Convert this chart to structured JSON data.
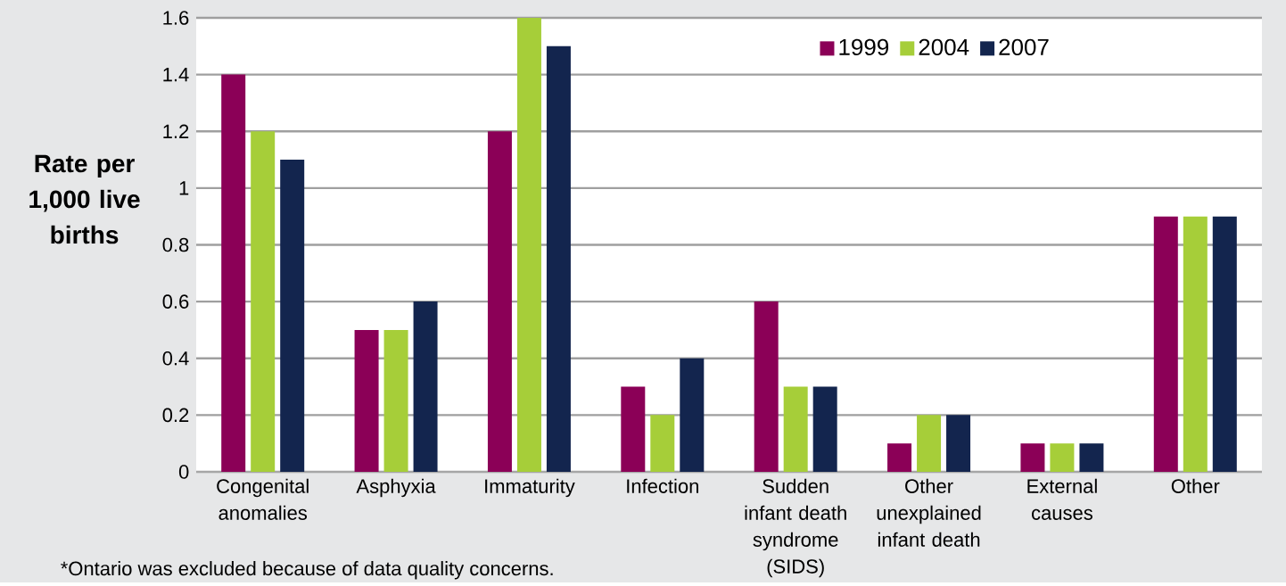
{
  "chart_data": {
    "type": "bar",
    "ylabel": "Rate per 1,000 live births",
    "categories": [
      "Congenital anomalies",
      "Asphyxia",
      "Immaturity",
      "Infection",
      "Sudden infant death syndrome (SIDS)",
      "Other unexplained infant death",
      "External causes",
      "Other"
    ],
    "series": [
      {
        "name": "1999",
        "color": "#8b0057",
        "values": [
          1.4,
          0.5,
          1.2,
          0.3,
          0.6,
          0.1,
          0.1,
          0.9
        ]
      },
      {
        "name": "2004",
        "color": "#a6ce39",
        "values": [
          1.2,
          0.5,
          1.6,
          0.2,
          0.3,
          0.2,
          0.1,
          0.9
        ]
      },
      {
        "name": "2007",
        "color": "#13254e",
        "values": [
          1.1,
          0.6,
          1.5,
          0.4,
          0.3,
          0.2,
          0.1,
          0.9
        ]
      }
    ],
    "ylim": [
      0,
      1.6
    ],
    "yticks": [
      0,
      0.2,
      0.4,
      0.6,
      0.8,
      1,
      1.2,
      1.4,
      1.6
    ],
    "grid": "y",
    "legend": "top right",
    "annotations": [
      "*Ontario was excluded because of data quality concerns."
    ]
  }
}
